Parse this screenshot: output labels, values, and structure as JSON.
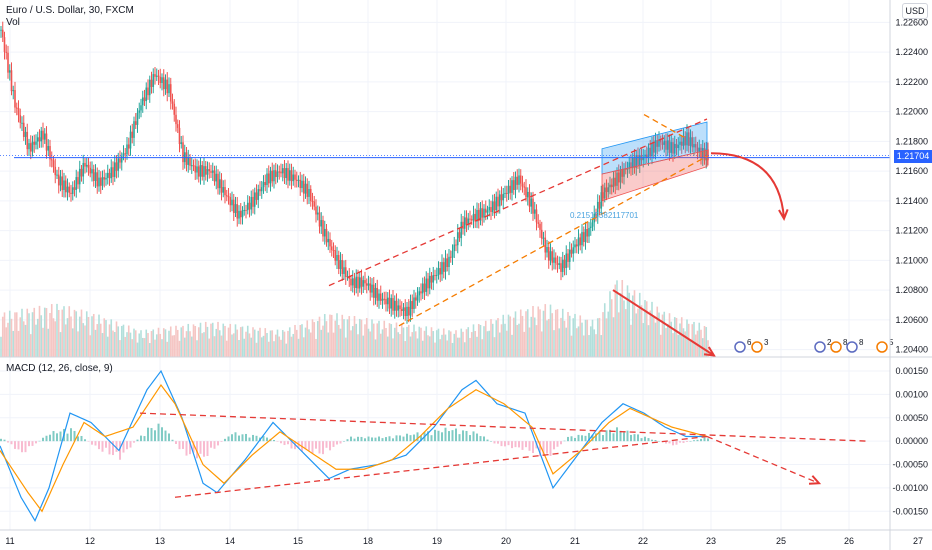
{
  "header": {
    "symbol": "Euro / U.S. Dollar, 30, FXCM",
    "volume_label": "Vol",
    "currency": "USD",
    "last_price": "1.21704"
  },
  "annotations": {
    "fib_label": "0.21515382117701"
  },
  "colors": {
    "up": "#26a69a",
    "down": "#ef5350",
    "ma_line": "#2962ff",
    "trend": "#e53935",
    "channel_lower": "#f57c00",
    "macd": "#2196f3",
    "signal": "#ff9800"
  },
  "chart_data": [
    {
      "type": "candlestick",
      "title": "Euro / U.S. Dollar, 30, FXCM",
      "ylabel": "USD",
      "x_ticks": [
        "11",
        "12",
        "13",
        "14",
        "15",
        "18",
        "19",
        "20",
        "21",
        "22",
        "23",
        "25",
        "26",
        "27"
      ],
      "y_ticks": [
        "1.22600",
        "1.22400",
        "1.22200",
        "1.22000",
        "1.21800",
        "1.21600",
        "1.21400",
        "1.21200",
        "1.21000",
        "1.20800",
        "1.20600",
        "1.20400"
      ],
      "ylim": [
        1.2035,
        1.2275
      ],
      "last_price": 1.21704,
      "close_path": [
        [
          0,
          1.2255
        ],
        [
          2,
          1.2205
        ],
        [
          4,
          1.2175
        ],
        [
          6,
          1.2185
        ],
        [
          8,
          1.2155
        ],
        [
          10,
          1.2145
        ],
        [
          12,
          1.2165
        ],
        [
          14,
          1.2152
        ],
        [
          16,
          1.216
        ],
        [
          18,
          1.2175
        ],
        [
          20,
          1.2205
        ],
        [
          22,
          1.2225
        ],
        [
          24,
          1.2215
        ],
        [
          26,
          1.217
        ],
        [
          28,
          1.216
        ],
        [
          30,
          1.216
        ],
        [
          32,
          1.2145
        ],
        [
          34,
          1.213
        ],
        [
          36,
          1.214
        ],
        [
          38,
          1.2155
        ],
        [
          40,
          1.216
        ],
        [
          42,
          1.2155
        ],
        [
          44,
          1.2145
        ],
        [
          46,
          1.212
        ],
        [
          48,
          1.21
        ],
        [
          50,
          1.2085
        ],
        [
          52,
          1.2085
        ],
        [
          54,
          1.2075
        ],
        [
          56,
          1.207
        ],
        [
          58,
          1.2065
        ],
        [
          60,
          1.208
        ],
        [
          62,
          1.209
        ],
        [
          64,
          1.21
        ],
        [
          66,
          1.2125
        ],
        [
          68,
          1.213
        ],
        [
          70,
          1.2135
        ],
        [
          72,
          1.2145
        ],
        [
          74,
          1.2155
        ],
        [
          76,
          1.2135
        ],
        [
          78,
          1.2105
        ],
        [
          80,
          1.2095
        ],
        [
          82,
          1.211
        ],
        [
          84,
          1.212
        ],
        [
          86,
          1.2145
        ],
        [
          88,
          1.2155
        ],
        [
          90,
          1.2165
        ],
        [
          92,
          1.217
        ],
        [
          94,
          1.218
        ],
        [
          96,
          1.2175
        ],
        [
          98,
          1.2182
        ],
        [
          100,
          1.2172
        ],
        [
          101,
          1.21704
        ]
      ],
      "volume_range": [
        0,
        1
      ],
      "volume_profile": [
        [
          0,
          0.5
        ],
        [
          8,
          0.6
        ],
        [
          13,
          0.5
        ],
        [
          20,
          0.3
        ],
        [
          30,
          0.4
        ],
        [
          40,
          0.3
        ],
        [
          47,
          0.5
        ],
        [
          55,
          0.4
        ],
        [
          65,
          0.3
        ],
        [
          75,
          0.55
        ],
        [
          78,
          0.6
        ],
        [
          85,
          0.4
        ],
        [
          88,
          0.9
        ],
        [
          95,
          0.5
        ],
        [
          101,
          0.35
        ]
      ],
      "horizontal_line": 1.2169,
      "trend_lines": [
        {
          "style": "dashed",
          "color": "#e53935",
          "from": [
            47,
            1.2083
          ],
          "to": [
            101,
            1.2195
          ]
        },
        {
          "style": "dashed",
          "color": "#f57c00",
          "from": [
            57,
            1.2056
          ],
          "to": [
            101,
            1.217
          ]
        },
        {
          "style": "dashed",
          "color": "#f57c00",
          "from": [
            92,
            1.2198
          ],
          "to": [
            98,
            1.2182
          ]
        }
      ],
      "projection_arrows": [
        {
          "color": "#e53935",
          "from": [
            101,
            1.2172
          ],
          "to": [
            112,
            1.2128
          ],
          "curved": true
        },
        {
          "color": "#e53935",
          "from": [
            87,
            1.208
          ],
          "to": [
            102,
            1.2036
          ],
          "curved": false
        }
      ],
      "regression_channel": {
        "x": [
          86,
          101
        ],
        "upper": [
          1.2175,
          1.2193
        ],
        "mid": [
          1.2158,
          1.2174
        ],
        "lower": [
          1.214,
          1.2163
        ]
      },
      "fib_label": "0.21515382117701",
      "events": [
        "6",
        "3",
        "2",
        "8",
        "8",
        "5"
      ]
    },
    {
      "type": "line",
      "title": "MACD (12, 26, close, 9)",
      "y_ticks": [
        "0.00150",
        "0.00100",
        "0.00050",
        "0.00000",
        "-0.00050",
        "-0.00100",
        "-0.00150"
      ],
      "ylim": [
        -0.0019,
        0.0018
      ],
      "series": [
        {
          "name": "MACD",
          "values": [
            [
              0,
              -0.0001
            ],
            [
              3,
              -0.0012
            ],
            [
              5,
              -0.0017
            ],
            [
              7,
              -0.001
            ],
            [
              10,
              0.0006
            ],
            [
              13,
              0.0004
            ],
            [
              17,
              -0.0002
            ],
            [
              21,
              0.0011
            ],
            [
              23,
              0.0015
            ],
            [
              26,
              0.0005
            ],
            [
              29,
              -0.0009
            ],
            [
              31,
              -0.0011
            ],
            [
              35,
              -0.0004
            ],
            [
              39,
              0.0004
            ],
            [
              43,
              -0.0002
            ],
            [
              47,
              -0.0008
            ],
            [
              50,
              -0.0006
            ],
            [
              54,
              -0.0005
            ],
            [
              58,
              -0.0003
            ],
            [
              62,
              0.0003
            ],
            [
              66,
              0.0011
            ],
            [
              68,
              0.0013
            ],
            [
              71,
              0.0008
            ],
            [
              75,
              0.0006
            ],
            [
              77,
              -0.0002
            ],
            [
              79,
              -0.001
            ],
            [
              82,
              -0.0004
            ],
            [
              86,
              0.0004
            ],
            [
              89,
              0.0008
            ],
            [
              92,
              0.0006
            ],
            [
              95,
              0.0003
            ],
            [
              98,
              0.0001
            ],
            [
              101,
              0.0001
            ]
          ]
        },
        {
          "name": "Signal",
          "values": [
            [
              0,
              -0.0002
            ],
            [
              4,
              -0.0011
            ],
            [
              6,
              -0.0015
            ],
            [
              9,
              -0.0005
            ],
            [
              12,
              0.0004
            ],
            [
              15,
              0.0001
            ],
            [
              19,
              0.0003
            ],
            [
              23,
              0.0012
            ],
            [
              25,
              0.0008
            ],
            [
              29,
              -0.0005
            ],
            [
              32,
              -0.0009
            ],
            [
              36,
              -0.0003
            ],
            [
              40,
              0.0002
            ],
            [
              44,
              -0.0002
            ],
            [
              48,
              -0.0006
            ],
            [
              52,
              -0.0006
            ],
            [
              56,
              -0.0004
            ],
            [
              60,
              0.0001
            ],
            [
              64,
              0.0007
            ],
            [
              68,
              0.0011
            ],
            [
              72,
              0.0008
            ],
            [
              76,
              0.0003
            ],
            [
              79,
              -0.0007
            ],
            [
              83,
              -0.0002
            ],
            [
              87,
              0.0004
            ],
            [
              90,
              0.0007
            ],
            [
              93,
              0.0005
            ],
            [
              96,
              0.0003
            ],
            [
              101,
              0.0001
            ]
          ]
        }
      ],
      "histogram_profile": [
        [
          0,
          0.0001
        ],
        [
          3,
          -0.0003
        ],
        [
          7,
          0.0002
        ],
        [
          10,
          0.0003
        ],
        [
          14,
          -0.0002
        ],
        [
          17,
          -0.0004
        ],
        [
          21,
          0.0003
        ],
        [
          23,
          0.0004
        ],
        [
          26,
          -0.0003
        ],
        [
          29,
          -0.0004
        ],
        [
          33,
          0.0002
        ],
        [
          38,
          0.0001
        ],
        [
          42,
          -0.0002
        ],
        [
          46,
          -0.0003
        ],
        [
          50,
          0.0001
        ],
        [
          55,
          0.0001
        ],
        [
          60,
          0.0002
        ],
        [
          64,
          0.0003
        ],
        [
          68,
          0.0002
        ],
        [
          71,
          -0.0001
        ],
        [
          75,
          -0.0002
        ],
        [
          78,
          -0.0004
        ],
        [
          81,
          0.0001
        ],
        [
          85,
          0.0002
        ],
        [
          88,
          0.0003
        ],
        [
          92,
          0.0001
        ],
        [
          96,
          -0.0001
        ],
        [
          101,
          0.0001
        ]
      ],
      "trend_lines": [
        {
          "style": "dashed",
          "color": "#e53935",
          "from": [
            20,
            0.0006
          ],
          "to": [
            124,
            0.0
          ]
        },
        {
          "style": "dashed",
          "color": "#e53935",
          "from": [
            25,
            -0.0012
          ],
          "to": [
            101,
            0.0001
          ]
        },
        {
          "style": "dashed",
          "color": "#e53935",
          "from": [
            101,
            0.0001
          ],
          "to": [
            117,
            -0.0009
          ]
        }
      ]
    }
  ]
}
